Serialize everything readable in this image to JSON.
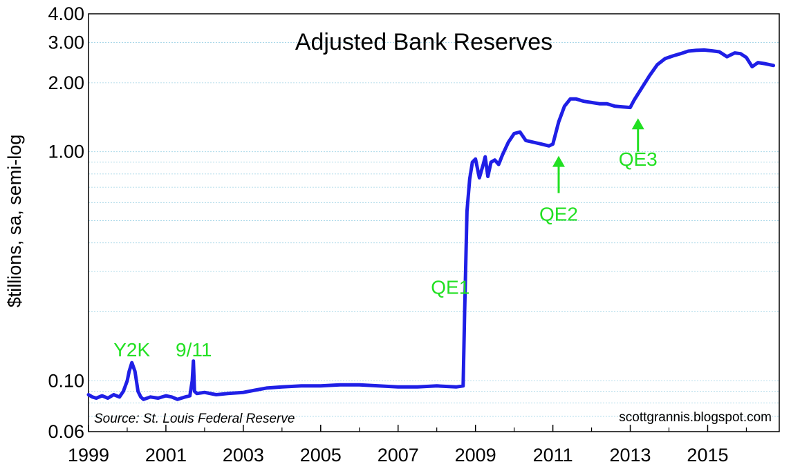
{
  "chart_data": {
    "type": "line",
    "title": "Adjusted Bank Reserves",
    "ylabel": "$tillions, sa, semi-log",
    "xlabel": "",
    "y_scale": "log",
    "ylim": [
      0.06,
      4.0
    ],
    "xlim": [
      1999.0,
      2016.85
    ],
    "y_ticks": [
      {
        "value": 0.06,
        "label": "0.06"
      },
      {
        "value": 0.1,
        "label": "0.10"
      },
      {
        "value": 1.0,
        "label": "1.00"
      },
      {
        "value": 2.0,
        "label": "2.00"
      },
      {
        "value": 3.0,
        "label": "3.00"
      },
      {
        "value": 4.0,
        "label": "4.00"
      }
    ],
    "y_grid": [
      0.06,
      0.07,
      0.08,
      0.09,
      0.1,
      0.2,
      0.3,
      0.4,
      0.5,
      0.6,
      0.7,
      0.8,
      0.9,
      1.0,
      2.0,
      3.0,
      4.0
    ],
    "x_ticks": [
      {
        "value": 1999,
        "label": "1999"
      },
      {
        "value": 2001,
        "label": "2001"
      },
      {
        "value": 2003,
        "label": "2003"
      },
      {
        "value": 2005,
        "label": "2005"
      },
      {
        "value": 2007,
        "label": "2007"
      },
      {
        "value": 2009,
        "label": "2009"
      },
      {
        "value": 2011,
        "label": "2011"
      },
      {
        "value": 2013,
        "label": "2013"
      },
      {
        "value": 2015,
        "label": "2015"
      }
    ],
    "x_minor_ticks": [
      2000,
      2002,
      2004,
      2006,
      2008,
      2010,
      2012,
      2014,
      2016
    ],
    "series": [
      {
        "name": "",
        "color": "#1f1fe6",
        "x": [
          1999.0,
          1999.1,
          1999.2,
          1999.35,
          1999.5,
          1999.65,
          1999.8,
          1999.9,
          2000.0,
          2000.05,
          2000.12,
          2000.2,
          2000.28,
          2000.35,
          2000.42,
          2000.6,
          2000.8,
          2001.0,
          2001.15,
          2001.3,
          2001.5,
          2001.62,
          2001.68,
          2001.71,
          2001.74,
          2001.8,
          2002.0,
          2002.3,
          2002.6,
          2003.0,
          2003.3,
          2003.6,
          2004.0,
          2004.5,
          2005.0,
          2005.5,
          2006.0,
          2006.5,
          2007.0,
          2007.5,
          2008.0,
          2008.5,
          2008.68,
          2008.72,
          2008.78,
          2008.85,
          2008.92,
          2009.0,
          2009.1,
          2009.2,
          2009.25,
          2009.32,
          2009.4,
          2009.5,
          2009.6,
          2009.7,
          2009.85,
          2010.0,
          2010.15,
          2010.3,
          2010.5,
          2010.7,
          2010.9,
          2011.0,
          2011.15,
          2011.3,
          2011.45,
          2011.6,
          2011.8,
          2012.0,
          2012.2,
          2012.4,
          2012.6,
          2012.8,
          2013.0,
          2013.1,
          2013.3,
          2013.5,
          2013.7,
          2013.9,
          2014.1,
          2014.3,
          2014.5,
          2014.7,
          2014.9,
          2015.1,
          2015.3,
          2015.5,
          2015.7,
          2015.85,
          2016.0,
          2016.15,
          2016.3,
          2016.5,
          2016.7
        ],
        "y": [
          0.087,
          0.085,
          0.084,
          0.086,
          0.084,
          0.087,
          0.085,
          0.09,
          0.1,
          0.11,
          0.12,
          0.11,
          0.09,
          0.085,
          0.083,
          0.085,
          0.084,
          0.086,
          0.085,
          0.083,
          0.085,
          0.086,
          0.1,
          0.122,
          0.09,
          0.088,
          0.089,
          0.087,
          0.088,
          0.089,
          0.091,
          0.093,
          0.094,
          0.095,
          0.095,
          0.096,
          0.096,
          0.095,
          0.094,
          0.094,
          0.095,
          0.094,
          0.095,
          0.2,
          0.55,
          0.76,
          0.9,
          0.93,
          0.77,
          0.88,
          0.95,
          0.78,
          0.9,
          0.92,
          0.88,
          0.97,
          1.1,
          1.2,
          1.22,
          1.12,
          1.1,
          1.08,
          1.06,
          1.08,
          1.35,
          1.58,
          1.7,
          1.7,
          1.66,
          1.64,
          1.62,
          1.62,
          1.58,
          1.57,
          1.56,
          1.68,
          1.9,
          2.15,
          2.4,
          2.55,
          2.62,
          2.68,
          2.75,
          2.77,
          2.78,
          2.76,
          2.73,
          2.6,
          2.7,
          2.68,
          2.58,
          2.35,
          2.45,
          2.42,
          2.38
        ]
      }
    ],
    "annotations": [
      {
        "text": "Y2K",
        "x": 2000.12,
        "y": 0.128,
        "arrow": false
      },
      {
        "text": "9/11",
        "x": 2001.72,
        "y": 0.128,
        "arrow": false
      },
      {
        "text": "QE1",
        "x": 2008.35,
        "y": 0.24,
        "arrow": false
      },
      {
        "text": "QE2",
        "x": 2011.15,
        "y": 0.5,
        "arrow": true,
        "arrow_top_y": 0.96,
        "arrow_bottom_y": 0.66
      },
      {
        "text": "QE3",
        "x": 2013.2,
        "y": 0.87,
        "arrow": true,
        "arrow_top_y": 1.4,
        "arrow_bottom_y": 1.0
      }
    ],
    "source_note": "Source:  St. Louis Federal Reserve",
    "credit": "scottgrannis.blogspot.com",
    "annotation_color": "#22e022",
    "grid": true
  }
}
